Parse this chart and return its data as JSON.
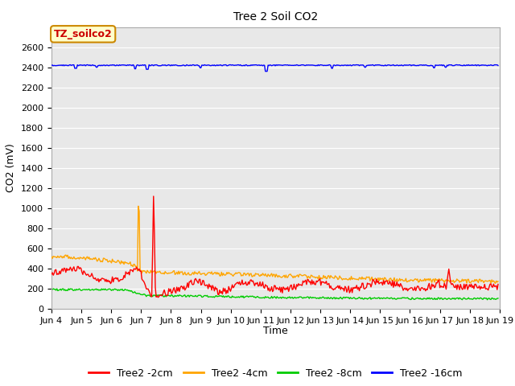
{
  "title": "Tree 2 Soil CO2",
  "ylabel": "CO2 (mV)",
  "xlabel": "Time",
  "xlim_days": [
    4,
    19
  ],
  "ylim": [
    0,
    2800
  ],
  "yticks": [
    0,
    200,
    400,
    600,
    800,
    1000,
    1200,
    1400,
    1600,
    1800,
    2000,
    2200,
    2400,
    2600
  ],
  "xtick_labels": [
    "Jun 4",
    "Jun 5",
    "Jun 6",
    "Jun 7",
    "Jun 8",
    "Jun 9",
    "Jun 10",
    "Jun 11",
    "Jun 12",
    "Jun 13",
    "Jun 14",
    "Jun 15",
    "Jun 16",
    "Jun 17",
    "Jun 18",
    "Jun 19"
  ],
  "xtick_positions": [
    4,
    5,
    6,
    7,
    8,
    9,
    10,
    11,
    12,
    13,
    14,
    15,
    16,
    17,
    18,
    19
  ],
  "figure_bg_color": "#ffffff",
  "plot_bg_color": "#e8e8e8",
  "grid_color": "#ffffff",
  "colors": {
    "2cm": "#ff0000",
    "4cm": "#ffa500",
    "8cm": "#00cc00",
    "16cm": "#0000ff"
  },
  "legend_labels": [
    "Tree2 -2cm",
    "Tree2 -4cm",
    "Tree2 -8cm",
    "Tree2 -16cm"
  ],
  "legend_colors": [
    "#ff0000",
    "#ffa500",
    "#00cc00",
    "#0000ff"
  ],
  "annotation_box": "TZ_soilco2",
  "annotation_box_facecolor": "#ffffcc",
  "annotation_box_edgecolor": "#cc8800",
  "line_width": 1.0,
  "title_fontsize": 10,
  "tick_fontsize": 8,
  "label_fontsize": 9
}
